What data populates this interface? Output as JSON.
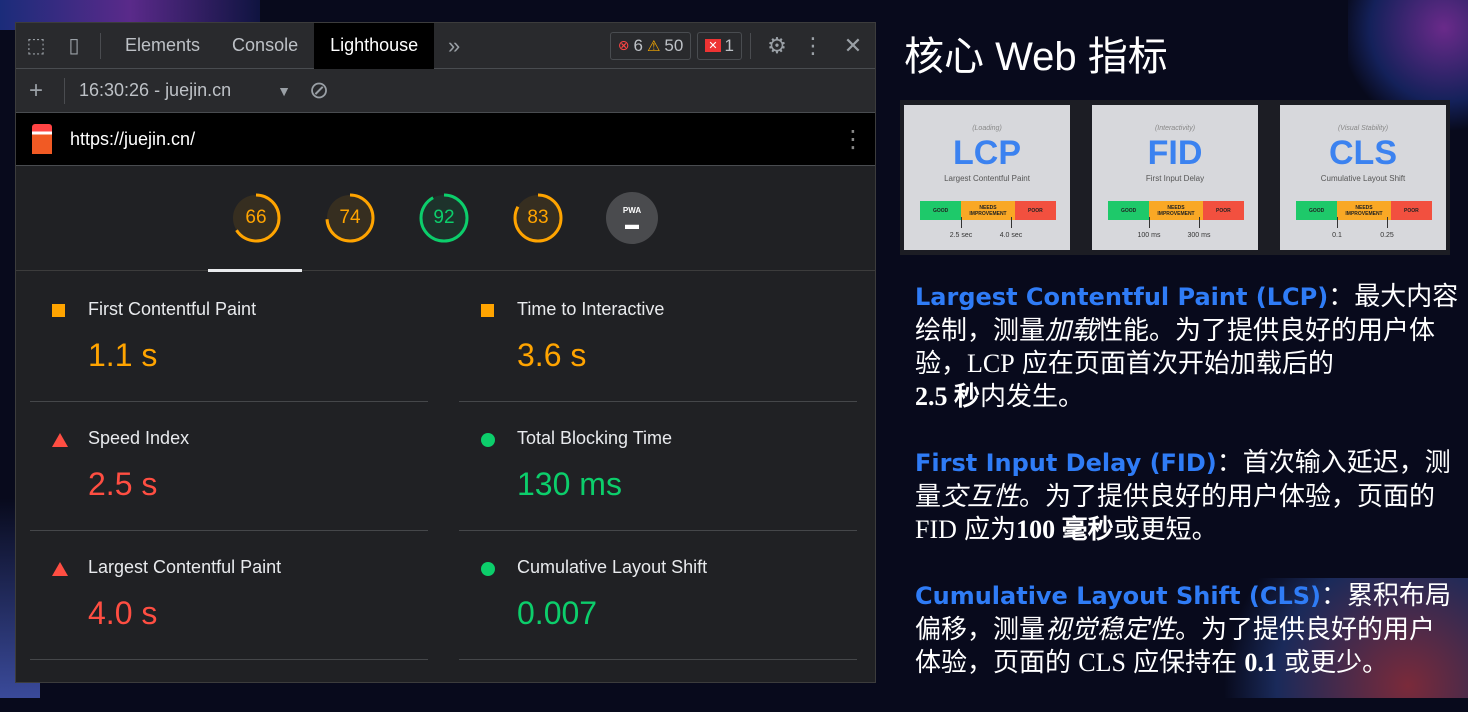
{
  "devtools": {
    "tabs": [
      "Elements",
      "Console",
      "Lighthouse"
    ],
    "active_tab": "Lighthouse",
    "errors": "6",
    "warnings": "50",
    "issues": "1",
    "report_select": "16:30:26 - juejin.cn",
    "url": "https://juejin.cn/",
    "scores": [
      {
        "value": "66",
        "score": 66,
        "color": "#ffa400"
      },
      {
        "value": "74",
        "score": 74,
        "color": "#ffa400"
      },
      {
        "value": "92",
        "score": 92,
        "color": "#0cce6b"
      },
      {
        "value": "83",
        "score": 83,
        "color": "#ffa400"
      }
    ],
    "pwa_label": "PWA",
    "metrics": [
      {
        "label": "First Contentful Paint",
        "value": "1.1 s",
        "status": "average",
        "color": "#ffa400"
      },
      {
        "label": "Time to Interactive",
        "value": "3.6 s",
        "status": "average",
        "color": "#ffa400"
      },
      {
        "label": "Speed Index",
        "value": "2.5 s",
        "status": "fail",
        "color": "#ff4e42"
      },
      {
        "label": "Total Blocking Time",
        "value": "130 ms",
        "status": "pass",
        "color": "#0cce6b"
      },
      {
        "label": "Largest Contentful Paint",
        "value": "4.0 s",
        "status": "fail",
        "color": "#ff4e42"
      },
      {
        "label": "Cumulative Layout Shift",
        "value": "0.007",
        "status": "pass",
        "color": "#0cce6b"
      }
    ]
  },
  "slide": {
    "title": "核心 Web 指标",
    "cards": [
      {
        "category": "(Loading)",
        "abbr": "LCP",
        "name": "Largest Contentful Paint",
        "t1": "2.5 sec",
        "t2": "4.0 sec"
      },
      {
        "category": "(Interactivity)",
        "abbr": "FID",
        "name": "First Input Delay",
        "t1": "100 ms",
        "t2": "300 ms"
      },
      {
        "category": "(Visual Stability)",
        "abbr": "CLS",
        "name": "Cumulative Layout Shift",
        "t1": "0.1",
        "t2": "0.25"
      }
    ],
    "bar_labels": {
      "good": "GOOD",
      "needs": "NEEDS IMPROVEMENT",
      "poor": "POOR"
    },
    "lcp": {
      "head": "Largest Contentful Paint (LCP)",
      "t1": "：最大内容绘制，测量",
      "em": "加载",
      "t2": "性能。为了提供良好的用户体验，",
      "s1": "LCP",
      "t3": " 应在页面首次开始加载后的",
      "b": "2.5 秒",
      "t4": "内发生。"
    },
    "fid": {
      "head": "First Input Delay (FID)",
      "t1": "：首次输入延迟，测量",
      "em": "交互性",
      "t2": "。为了提供良好的用户体验，页面的 ",
      "s1": "FID",
      "t3": " 应为",
      "b": "100 毫秒",
      "t4": "或更短。"
    },
    "cls": {
      "head": "Cumulative Layout Shift (CLS)",
      "t1": "：累积布局偏移，测量",
      "em": "视觉稳定性",
      "t2": "。为了提供良好的用户体验，页面的 ",
      "s1": "CLS",
      "t3": " 应保持在 ",
      "b": "0.1",
      "t4": " 或更少。"
    }
  }
}
